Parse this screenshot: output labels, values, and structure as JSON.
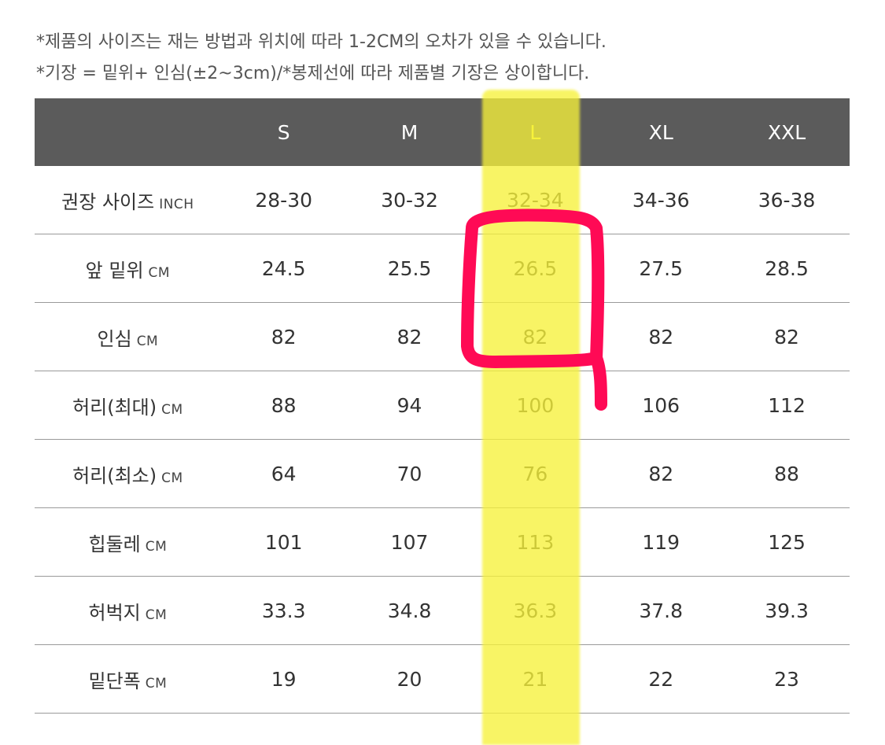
{
  "notes": [
    "*제품의 사이즈는 재는 방법과 위치에 따라 1-2CM의 오차가 있을 수 있습니다.",
    "*기장 = 밑위+ 인심(±2~3cm)/*봉제선에 따라 제품별 기장은 상이합니다."
  ],
  "table": {
    "header": [
      "",
      "S",
      "M",
      "L",
      "XL",
      "XXL"
    ],
    "rows": [
      {
        "label": "권장 사이즈",
        "unit": "INCH",
        "values": [
          "28-30",
          "30-32",
          "32-34",
          "34-36",
          "36-38"
        ]
      },
      {
        "label": "앞 밑위",
        "unit": "CM",
        "values": [
          "24.5",
          "25.5",
          "26.5",
          "27.5",
          "28.5"
        ]
      },
      {
        "label": "인심",
        "unit": "CM",
        "values": [
          "82",
          "82",
          "82",
          "82",
          "82"
        ]
      },
      {
        "label": "허리(최대)",
        "unit": "CM",
        "values": [
          "88",
          "94",
          "100",
          "106",
          "112"
        ]
      },
      {
        "label": "허리(최소)",
        "unit": "CM",
        "values": [
          "64",
          "70",
          "76",
          "82",
          "88"
        ]
      },
      {
        "label": "힙둘레",
        "unit": "CM",
        "values": [
          "101",
          "107",
          "113",
          "119",
          "125"
        ]
      },
      {
        "label": "허벅지",
        "unit": "CM",
        "values": [
          "33.3",
          "34.8",
          "36.3",
          "37.8",
          "39.3"
        ]
      },
      {
        "label": "밑단폭",
        "unit": "CM",
        "values": [
          "19",
          "20",
          "21",
          "22",
          "23"
        ]
      }
    ]
  },
  "colors": {
    "header_bg": "#5b5b5b",
    "header_highlight_text": "#f7f23a",
    "highlight": "#f7f23a",
    "annotation": "#ff0a55"
  }
}
